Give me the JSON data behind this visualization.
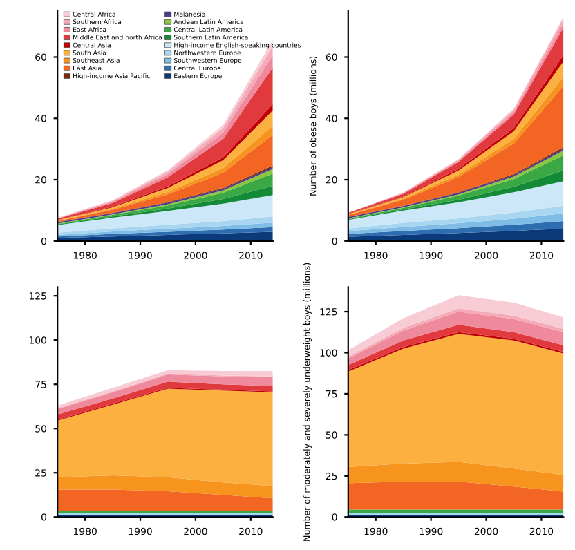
{
  "chart_data": [
    {
      "type": "area",
      "stacked": true,
      "x": [
        1975,
        1985,
        1995,
        2005,
        2014
      ],
      "xlim": [
        1975,
        2014
      ],
      "xticks": [
        1980,
        1990,
        2000,
        2010
      ],
      "ylim": [
        0,
        75
      ],
      "yticks": [
        0,
        20,
        40,
        60
      ],
      "legend": "top",
      "series": [
        {
          "name": "Eastern Europe",
          "color": "#0b3a7a",
          "values": [
            1,
            1.5,
            2,
            2.5,
            3
          ]
        },
        {
          "name": "Central Europe",
          "color": "#2e6db0",
          "values": [
            0.5,
            0.8,
            1,
            1.2,
            1.5
          ]
        },
        {
          "name": "Southwestern Europe",
          "color": "#7fbde6",
          "values": [
            0.5,
            0.8,
            1,
            1.2,
            1.5
          ]
        },
        {
          "name": "Northwestern Europe",
          "color": "#a8d5f0",
          "values": [
            0.7,
            1,
            1.3,
            1.6,
            2
          ]
        },
        {
          "name": "High-income English-speaking countries",
          "color": "#cce7f8",
          "values": [
            2.5,
            3.5,
            4.5,
            5.7,
            7
          ]
        },
        {
          "name": "Southern Latin America",
          "color": "#138a36",
          "values": [
            0.2,
            0.4,
            0.8,
            1.5,
            3
          ]
        },
        {
          "name": "Central Latin America",
          "color": "#39a845",
          "values": [
            0.2,
            0.5,
            1,
            2,
            4
          ]
        },
        {
          "name": "Andean Latin America",
          "color": "#8cc63f",
          "values": [
            0.1,
            0.2,
            0.4,
            0.8,
            1.5
          ]
        },
        {
          "name": "Melanesia",
          "color": "#4b3a8c",
          "values": [
            0.4,
            0.4,
            0.5,
            0.5,
            0.6
          ]
        },
        {
          "name": "High-income Asia Pacific",
          "color": "#7a2a0a",
          "values": [
            0.1,
            0.1,
            0.2,
            0.3,
            0.5
          ]
        },
        {
          "name": "East Asia",
          "color": "#f26522",
          "values": [
            0.3,
            1,
            2.5,
            5,
            10
          ]
        },
        {
          "name": "Southeast Asia",
          "color": "#f7941d",
          "values": [
            0.1,
            0.3,
            0.8,
            1.5,
            3
          ]
        },
        {
          "name": "South Asia",
          "color": "#fbb040",
          "values": [
            0.2,
            0.5,
            1.3,
            2.5,
            5
          ]
        },
        {
          "name": "Central Asia",
          "color": "#c00000",
          "values": [
            0.1,
            0.2,
            0.5,
            1,
            2
          ]
        },
        {
          "name": "Middle East and north Africa",
          "color": "#e03a3e",
          "values": [
            0.4,
            1.2,
            3,
            6,
            12
          ]
        },
        {
          "name": "East Africa",
          "color": "#ee8a9b",
          "values": [
            0.1,
            0.4,
            1,
            2,
            4
          ]
        },
        {
          "name": "Southern Africa",
          "color": "#f4aab7",
          "values": [
            0.1,
            0.3,
            0.8,
            1.5,
            3
          ]
        },
        {
          "name": "Central Africa",
          "color": "#f8ccd5",
          "values": [
            0.1,
            0.2,
            0.5,
            1,
            2
          ]
        }
      ]
    },
    {
      "type": "area",
      "stacked": true,
      "x": [
        1975,
        1985,
        1995,
        2005,
        2014
      ],
      "xlim": [
        1975,
        2014
      ],
      "xticks": [
        1980,
        1990,
        2000,
        2010
      ],
      "ylim": [
        0,
        75
      ],
      "yticks": [
        0,
        20,
        40,
        60
      ],
      "ylabel": "Number of obese boys (millions)",
      "series": [
        {
          "color": "#0b3a7a",
          "values": [
            1.4,
            2,
            2.6,
            3.3,
            4
          ]
        },
        {
          "color": "#2e6db0",
          "values": [
            0.9,
            1.3,
            1.6,
            2,
            2.5
          ]
        },
        {
          "color": "#7fbde6",
          "values": [
            0.9,
            1.3,
            1.6,
            2,
            2.5
          ]
        },
        {
          "color": "#a8d5f0",
          "values": [
            0.9,
            1.3,
            1.6,
            2,
            2.5
          ]
        },
        {
          "color": "#cce7f8",
          "values": [
            2.8,
            4,
            5.2,
            6.6,
            8
          ]
        },
        {
          "color": "#138a36",
          "values": [
            0.2,
            0.4,
            0.9,
            1.8,
            3.5
          ]
        },
        {
          "color": "#39a845",
          "values": [
            0.2,
            0.5,
            1.3,
            2.5,
            5
          ]
        },
        {
          "color": "#8cc63f",
          "values": [
            0.1,
            0.2,
            0.4,
            0.8,
            1.5
          ]
        },
        {
          "color": "#4b3a8c",
          "values": [
            0.4,
            0.4,
            0.5,
            0.5,
            0.6
          ]
        },
        {
          "color": "#7a2a0a",
          "values": [
            0.1,
            0.1,
            0.2,
            0.3,
            0.5
          ]
        },
        {
          "color": "#f26522",
          "values": [
            0.6,
            2,
            5,
            10,
            20
          ]
        },
        {
          "color": "#f7941d",
          "values": [
            0.1,
            0.3,
            0.8,
            1.5,
            3
          ]
        },
        {
          "color": "#fbb040",
          "values": [
            0.2,
            0.5,
            1.3,
            2.5,
            5
          ]
        },
        {
          "color": "#c00000",
          "values": [
            0.1,
            0.2,
            0.5,
            1,
            2
          ]
        },
        {
          "color": "#e03a3e",
          "values": [
            0.3,
            0.9,
            2.3,
            4.5,
            9
          ]
        },
        {
          "color": "#ee8a9b",
          "values": [
            0,
            0.2,
            0.4,
            0.8,
            1.5
          ]
        },
        {
          "color": "#f4aab7",
          "values": [
            0,
            0.2,
            0.4,
            0.8,
            1.5
          ]
        },
        {
          "color": "#f8ccd5",
          "values": [
            0,
            0.1,
            0.1,
            0.3,
            0.5
          ]
        }
      ]
    },
    {
      "type": "area",
      "stacked": true,
      "x": [
        1975,
        1985,
        1995,
        2005,
        2014
      ],
      "xlim": [
        1975,
        2014
      ],
      "xticks": [
        1980,
        1990,
        2000,
        2010
      ],
      "ylim": [
        0,
        130
      ],
      "yticks": [
        0,
        25,
        50,
        75,
        100,
        125
      ],
      "series": [
        {
          "color": "#0b3a7a",
          "values": [
            1,
            1,
            1,
            1,
            1
          ]
        },
        {
          "color": "#a8d5f0",
          "values": [
            1,
            1,
            1,
            1,
            1
          ]
        },
        {
          "color": "#39a845",
          "values": [
            1.5,
            1.5,
            1.5,
            1.5,
            1.5
          ]
        },
        {
          "color": "#f26522",
          "values": [
            12,
            12,
            11,
            9,
            7
          ]
        },
        {
          "color": "#f7941d",
          "values": [
            7,
            8,
            8,
            7,
            7
          ]
        },
        {
          "color": "#fbb040",
          "values": [
            32,
            40,
            50,
            52,
            53
          ]
        },
        {
          "color": "#c00000",
          "values": [
            0.5,
            0.5,
            0.5,
            0.5,
            0.5
          ]
        },
        {
          "color": "#e03a3e",
          "values": [
            3,
            3,
            3.5,
            3,
            3
          ]
        },
        {
          "color": "#ee8a9b",
          "values": [
            3,
            3.5,
            4,
            4.5,
            5
          ]
        },
        {
          "color": "#f4aab7",
          "values": [
            0.5,
            0.5,
            0.5,
            0.5,
            0.5
          ]
        },
        {
          "color": "#f8ccd5",
          "values": [
            1.5,
            2,
            2,
            2.5,
            3
          ]
        }
      ]
    },
    {
      "type": "area",
      "stacked": true,
      "x": [
        1975,
        1985,
        1995,
        2005,
        2014
      ],
      "xlim": [
        1975,
        2014
      ],
      "xticks": [
        1980,
        1990,
        2000,
        2010
      ],
      "ylim": [
        0,
        140
      ],
      "yticks": [
        0,
        25,
        50,
        75,
        100,
        125
      ],
      "ylabel": "Number of moderately and severely underweight boys (millions)",
      "series": [
        {
          "color": "#0b3a7a",
          "values": [
            1,
            1,
            1,
            1,
            1
          ]
        },
        {
          "color": "#a8d5f0",
          "values": [
            1.5,
            1.5,
            1.5,
            1.5,
            1.5
          ]
        },
        {
          "color": "#39a845",
          "values": [
            2,
            2,
            2,
            2,
            2
          ]
        },
        {
          "color": "#f26522",
          "values": [
            16,
            17,
            17,
            14,
            11
          ]
        },
        {
          "color": "#f7941d",
          "values": [
            10,
            11,
            12,
            11,
            10
          ]
        },
        {
          "color": "#fbb040",
          "values": [
            58,
            70,
            78,
            78,
            74
          ]
        },
        {
          "color": "#c00000",
          "values": [
            1,
            1,
            1,
            1,
            1
          ]
        },
        {
          "color": "#e03a3e",
          "values": [
            3,
            4,
            4.5,
            4,
            4
          ]
        },
        {
          "color": "#ee8a9b",
          "values": [
            4,
            6,
            8,
            8,
            8
          ]
        },
        {
          "color": "#f4aab7",
          "values": [
            1,
            1.5,
            2,
            2,
            2
          ]
        },
        {
          "color": "#f8ccd5",
          "values": [
            4,
            6,
            8,
            8,
            7
          ]
        }
      ]
    }
  ]
}
